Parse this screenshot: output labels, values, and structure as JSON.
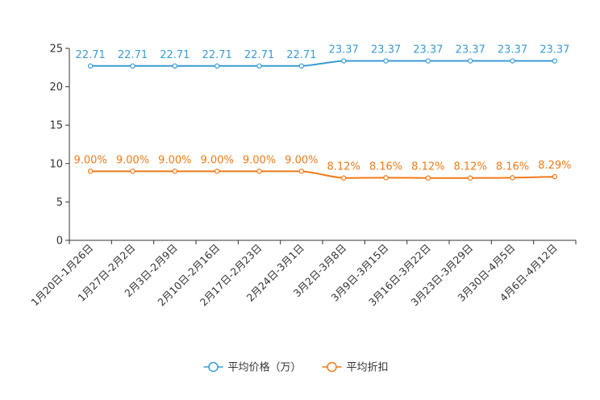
{
  "chart_data": {
    "type": "line",
    "categories": [
      "1月20日-1月26日",
      "1月27日-2月2日",
      "2月3日-2月9日",
      "2月10日-2月16日",
      "2月17日-2月23日",
      "2月24日-3月1日",
      "3月2日-3月8日",
      "3月9日-3月15日",
      "3月16日-3月22日",
      "3月23日-3月29日",
      "3月30日-4月5日",
      "4月6日-4月12日"
    ],
    "ylim": [
      0,
      25
    ],
    "yticks": [
      0,
      5,
      10,
      15,
      20,
      25
    ],
    "series": [
      {
        "name": "平均价格（万）",
        "color": "#3a9bd5",
        "values": [
          22.71,
          22.71,
          22.71,
          22.71,
          22.71,
          22.71,
          23.37,
          23.37,
          23.37,
          23.37,
          23.37,
          23.37
        ],
        "labels": [
          "22.71",
          "22.71",
          "22.71",
          "22.71",
          "22.71",
          "22.71",
          "23.37",
          "23.37",
          "23.37",
          "23.37",
          "23.37",
          "23.37"
        ]
      },
      {
        "name": "平均折扣",
        "color": "#f07a1a",
        "values": [
          9.0,
          9.0,
          9.0,
          9.0,
          9.0,
          9.0,
          8.12,
          8.16,
          8.12,
          8.12,
          8.16,
          8.29
        ],
        "labels": [
          "9.00%",
          "9.00%",
          "9.00%",
          "9.00%",
          "9.00%",
          "9.00%",
          "8.12%",
          "8.16%",
          "8.12%",
          "8.12%",
          "8.16%",
          "8.29%"
        ]
      }
    ],
    "legend_position": "bottom-center"
  }
}
